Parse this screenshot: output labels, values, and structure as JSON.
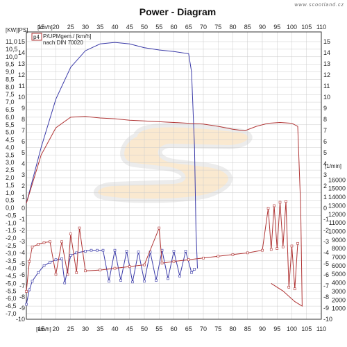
{
  "watermark": "www.scootland.cz",
  "chart_data": {
    "type": "line",
    "title": "Power - Diagram",
    "left_axis_unit": "[KW][PS]",
    "x_axis_unit_top": "[km/h]",
    "x_axis_unit_bottom": "[km/h]",
    "right_axis_unit": "[1/min]",
    "legend_marker": "p4",
    "legend_lines": [
      "P/UPMgem./ [km/h]",
      "nach DIN 70020"
    ],
    "x_ticks": [
      "10",
      "15",
      "20",
      "25",
      "30",
      "35",
      "40",
      "45",
      "50",
      "55",
      "60",
      "65",
      "70",
      "75",
      "80",
      "85",
      "90",
      "95",
      "100",
      "105",
      "110"
    ],
    "kw_ticks": [
      "11,0",
      "10,5",
      "10,0",
      "9,5",
      "9,0",
      "8,5",
      "8,0",
      "7,5",
      "7,0",
      "6,5",
      "6,0",
      "5,5",
      "5,0",
      "4,5",
      "4,0",
      "3,5",
      "3,0",
      "2,5",
      "2,0",
      "1,5",
      "1,0",
      "0,5",
      "0,0",
      "-0,5",
      "-1,0",
      "-1,5",
      "-2,0",
      "-2,5",
      "-3,0",
      "-3,5",
      "-4,0",
      "-4,5",
      "-5,0",
      "-5,5",
      "-6,0",
      "-6,5",
      "-7,0"
    ],
    "ps_ticks": [
      "15",
      "14",
      "13",
      "12",
      "11",
      "10",
      "9",
      "8",
      "7",
      "6",
      "5",
      "4",
      "3",
      "2",
      "1",
      "0",
      "-1",
      "-2",
      "-3",
      "-4",
      "-5",
      "-6",
      "-7",
      "-8",
      "-9",
      "-10"
    ],
    "rpm_ticks": [
      "16000",
      "15000",
      "14000",
      "13000",
      "12000",
      "11000",
      "10000",
      "9000",
      "8000",
      "7000",
      "6000",
      "5000",
      "4000",
      "3000",
      "2000",
      "1000"
    ],
    "xlim": [
      10,
      110
    ],
    "kw_lim": [
      -7.0,
      11.0
    ],
    "ps_lim": [
      -10,
      15
    ],
    "rpm_lim": [
      0,
      17000
    ],
    "colors": {
      "blue": "#3a3aa8",
      "red": "#b03434",
      "grid": "#cccccc"
    },
    "series": [
      {
        "color": "blue",
        "axis": "kw",
        "values": [
          [
            10,
            0.3
          ],
          [
            15,
            4.0
          ],
          [
            20,
            7.2
          ],
          [
            25,
            9.3
          ],
          [
            30,
            10.4
          ],
          [
            35,
            10.85
          ],
          [
            40,
            10.95
          ],
          [
            45,
            10.85
          ],
          [
            50,
            10.6
          ],
          [
            55,
            10.45
          ],
          [
            60,
            10.35
          ],
          [
            65,
            10.2
          ],
          [
            66,
            9.0
          ],
          [
            67,
            4.0
          ],
          [
            67.5,
            -1.5
          ],
          [
            68,
            -4.0
          ]
        ]
      },
      {
        "color": "red",
        "axis": "kw",
        "values": [
          [
            10,
            0.3
          ],
          [
            15,
            3.5
          ],
          [
            20,
            5.3
          ],
          [
            25,
            6.0
          ],
          [
            30,
            6.05
          ],
          [
            35,
            5.95
          ],
          [
            40,
            5.9
          ],
          [
            45,
            5.8
          ],
          [
            50,
            5.75
          ],
          [
            55,
            5.7
          ],
          [
            60,
            5.65
          ],
          [
            65,
            5.6
          ],
          [
            70,
            5.55
          ],
          [
            75,
            5.4
          ],
          [
            80,
            5.2
          ],
          [
            84,
            5.1
          ],
          [
            88,
            5.4
          ],
          [
            92,
            5.6
          ],
          [
            96,
            5.65
          ],
          [
            100,
            5.6
          ],
          [
            102,
            5.4
          ],
          [
            103,
            0.0
          ],
          [
            103.5,
            -6.5
          ],
          [
            101,
            -6.2
          ],
          [
            97,
            -5.5
          ],
          [
            93,
            -5.0
          ]
        ]
      },
      {
        "color": "blue",
        "axis": "rpm",
        "values": [
          [
            10,
            1500
          ],
          [
            11,
            3200
          ],
          [
            12,
            4200
          ],
          [
            14,
            5200
          ],
          [
            16,
            6000
          ],
          [
            18,
            6400
          ],
          [
            20,
            6700
          ],
          [
            22,
            6800
          ],
          [
            23,
            4000
          ],
          [
            25,
            7200
          ],
          [
            27,
            7500
          ],
          [
            30,
            7700
          ],
          [
            32,
            7800
          ],
          [
            34,
            7800
          ],
          [
            36,
            7800
          ],
          [
            38,
            4200
          ],
          [
            40,
            7800
          ],
          [
            42,
            4300
          ],
          [
            44,
            7700
          ],
          [
            46,
            4100
          ],
          [
            48,
            7600
          ],
          [
            50,
            4200
          ],
          [
            52,
            7600
          ],
          [
            54,
            4300
          ],
          [
            56,
            7800
          ],
          [
            58,
            4500
          ],
          [
            60,
            7700
          ],
          [
            62,
            4800
          ],
          [
            64,
            7700
          ],
          [
            66,
            5200
          ],
          [
            67,
            5600
          ]
        ]
      },
      {
        "color": "red",
        "axis": "rpm",
        "values": [
          [
            10,
            3000
          ],
          [
            11,
            6500
          ],
          [
            12,
            8200
          ],
          [
            14,
            8500
          ],
          [
            16,
            8700
          ],
          [
            18,
            8800
          ],
          [
            20,
            5000
          ],
          [
            22,
            8800
          ],
          [
            24,
            5000
          ],
          [
            25,
            9700
          ],
          [
            27,
            5200
          ],
          [
            28,
            10400
          ],
          [
            30,
            5400
          ],
          [
            35,
            5500
          ],
          [
            40,
            5700
          ],
          [
            45,
            5900
          ],
          [
            50,
            6100
          ],
          [
            55,
            10400
          ],
          [
            56,
            6300
          ],
          [
            60,
            6500
          ],
          [
            65,
            6700
          ],
          [
            70,
            6900
          ],
          [
            75,
            7100
          ],
          [
            80,
            7300
          ],
          [
            85,
            7500
          ],
          [
            90,
            7800
          ],
          [
            92,
            12700
          ],
          [
            93,
            7900
          ],
          [
            94,
            13000
          ],
          [
            95,
            8000
          ],
          [
            96,
            13400
          ],
          [
            97,
            8200
          ],
          [
            98,
            13500
          ],
          [
            99,
            3500
          ],
          [
            100,
            8300
          ],
          [
            101,
            3300
          ],
          [
            102,
            8600
          ]
        ]
      }
    ]
  }
}
